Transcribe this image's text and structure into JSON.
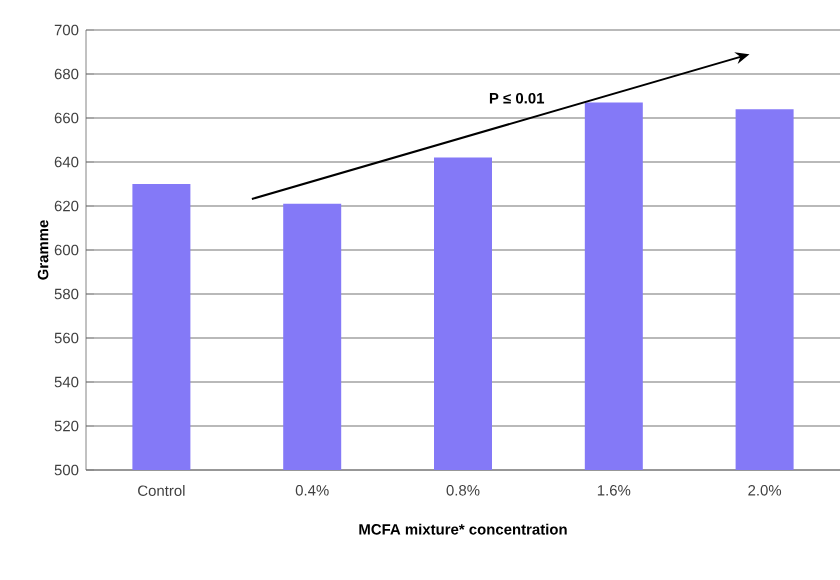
{
  "chart_data": {
    "type": "bar",
    "xlabel": "MCFA mixture* concentration",
    "ylabel": "Gramme",
    "categories": [
      "Control",
      "0.4%",
      "0.8%",
      "1.6%",
      "2.0%"
    ],
    "values": [
      630,
      621,
      642,
      667,
      664
    ],
    "color": "#8479f7",
    "ylim": [
      500,
      700
    ],
    "yticks": [
      500,
      520,
      540,
      560,
      580,
      600,
      620,
      640,
      660,
      680,
      700
    ],
    "grid": "y",
    "annotations": [
      "P ≤ 0.01"
    ]
  }
}
